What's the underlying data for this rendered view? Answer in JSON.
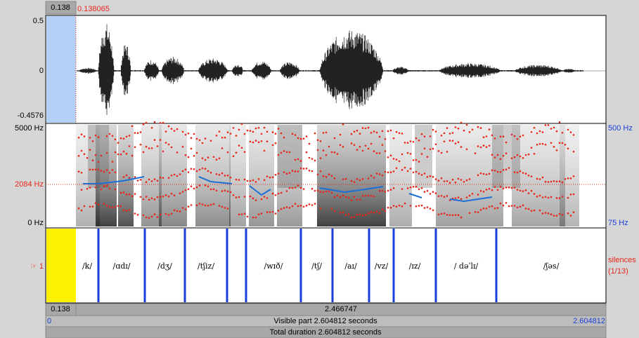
{
  "header": {
    "selection_start": "0.138",
    "cursor_time": "0.138065"
  },
  "waveform": {
    "top_label": "0.5",
    "zero_label": "0",
    "bottom_label": "-0.4576"
  },
  "spectrogram": {
    "top_label": "5000 Hz",
    "cursor_label": "2084 Hz",
    "bottom_label": "0 Hz",
    "pitch_top_label": "500 Hz",
    "pitch_bottom_label": "75 Hz"
  },
  "tier": {
    "name": "☞ 1",
    "right_label": "silences",
    "right_count": "(1/13)",
    "intervals": [
      "/k/",
      "/ɑdɪ/",
      "/dʒ/",
      "/tʃiz/",
      "/wɪð/",
      "/tʃ/",
      "/aɪ/",
      "/vz/",
      "/ɪz/",
      "/ dəˈlɪ/",
      "/ʃəs/"
    ]
  },
  "footer": {
    "selection_duration": "0.138",
    "remaining_duration": "2.466747",
    "visible_start": "0",
    "visible_part": "Visible part 2.604812 seconds",
    "visible_end": "2.604812",
    "total_duration": "Total duration 2.604812 seconds"
  }
}
